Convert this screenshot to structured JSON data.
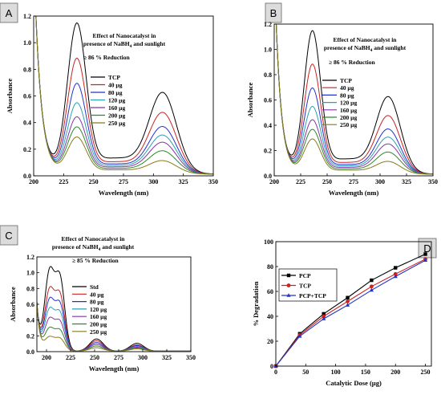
{
  "chart_data": [
    {
      "id": "A",
      "type": "line",
      "badge": "A",
      "title_lines": [
        "Effect of Nanocatalyst in",
        "presence of NaBH",
        "and sunlight"
      ],
      "title_sub": "4",
      "annotation": "≥ 86 % Reduction",
      "xlabel": "Wavelength (nm)",
      "ylabel": "Absorbance",
      "xlim": [
        200,
        350
      ],
      "ylim": [
        0,
        1.2
      ],
      "xticks": [
        200,
        225,
        250,
        275,
        300,
        325,
        350
      ],
      "yticks": [
        0.0,
        0.2,
        0.4,
        0.6,
        0.8,
        1.0,
        1.2
      ],
      "model": "tcp",
      "series": [
        {
          "name": "TCP",
          "color": "#000000",
          "peak1": 1.07,
          "peak2": 0.57,
          "trough": 0.22
        },
        {
          "name": "40 µg",
          "color": "#cc2222",
          "peak1": 0.82,
          "peak2": 0.43,
          "trough": 0.17
        },
        {
          "name": "80 µg",
          "color": "#2233cc",
          "peak1": 0.64,
          "peak2": 0.33,
          "trough": 0.14
        },
        {
          "name": "120 µg",
          "color": "#2aa0b0",
          "peak1": 0.5,
          "peak2": 0.27,
          "trough": 0.12
        },
        {
          "name": "160 µg",
          "color": "#8833aa",
          "peak1": 0.4,
          "peak2": 0.22,
          "trough": 0.1
        },
        {
          "name": "200 µg",
          "color": "#2a8a2a",
          "peak1": 0.33,
          "peak2": 0.16,
          "trough": 0.08
        },
        {
          "name": "250 µg",
          "color": "#8a7a1a",
          "peak1": 0.26,
          "peak2": 0.09,
          "trough": 0.06
        }
      ]
    },
    {
      "id": "B",
      "type": "line",
      "badge": "B",
      "title_lines": [
        "Effect of Nanocatalyst in",
        "presence of NaBH",
        "and sunlight"
      ],
      "title_sub": "4",
      "annotation": "≥ 86 % Reduction",
      "xlabel": "Wavelength (nm)",
      "ylabel": "Absorbance",
      "xlim": [
        200,
        350
      ],
      "ylim": [
        0,
        1.2
      ],
      "xticks": [
        200,
        225,
        250,
        275,
        300,
        325,
        350
      ],
      "yticks": [
        0.0,
        0.2,
        0.4,
        0.6,
        0.8,
        1.0,
        1.2
      ],
      "model": "tcp",
      "series": [
        {
          "name": "TCP",
          "color": "#000000",
          "peak1": 1.07,
          "peak2": 0.57,
          "trough": 0.22
        },
        {
          "name": "40 µg",
          "color": "#cc2222",
          "peak1": 0.82,
          "peak2": 0.43,
          "trough": 0.17
        },
        {
          "name": "80 µg",
          "color": "#2233cc",
          "peak1": 0.64,
          "peak2": 0.33,
          "trough": 0.14
        },
        {
          "name": "120 µg",
          "color": "#2aa0b0",
          "peak1": 0.5,
          "peak2": 0.27,
          "trough": 0.12
        },
        {
          "name": "160 µg",
          "color": "#8833aa",
          "peak1": 0.4,
          "peak2": 0.22,
          "trough": 0.1
        },
        {
          "name": "200 µg",
          "color": "#2a8a2a",
          "peak1": 0.33,
          "peak2": 0.16,
          "trough": 0.08
        },
        {
          "name": "250 µg",
          "color": "#8a7a1a",
          "peak1": 0.26,
          "peak2": 0.09,
          "trough": 0.06
        }
      ]
    },
    {
      "id": "C",
      "type": "line",
      "badge": "C",
      "title_lines": [
        "Effect of Nanocatalyst in",
        "presence of NaBH",
        "and sunlight"
      ],
      "title_sub": "4",
      "annotation": "≥ 85 % Reduction",
      "xlabel": "Wavelength (nm)",
      "ylabel": "Absorbance",
      "xlim": [
        190,
        350
      ],
      "ylim": [
        0,
        1.2
      ],
      "xticks": [
        200,
        225,
        250,
        275,
        300,
        325,
        350
      ],
      "yticks": [
        0.0,
        0.2,
        0.4,
        0.6,
        0.8,
        1.0,
        1.2
      ],
      "model": "std",
      "series": [
        {
          "name": "Std",
          "color": "#000000",
          "peak1": 1.1,
          "peak2": 0.1,
          "trough": 0.07
        },
        {
          "name": "40 µg",
          "color": "#cc2222",
          "peak1": 0.84,
          "peak2": 0.08,
          "trough": 0.06
        },
        {
          "name": "80 µg",
          "color": "#2233cc",
          "peak1": 0.7,
          "peak2": 0.07,
          "trough": 0.05
        },
        {
          "name": "120 µg",
          "color": "#2aa0b0",
          "peak1": 0.57,
          "peak2": 0.06,
          "trough": 0.04
        },
        {
          "name": "160 µg",
          "color": "#8833aa",
          "peak1": 0.44,
          "peak2": 0.05,
          "trough": 0.04
        },
        {
          "name": "200 µg",
          "color": "#2a8a2a",
          "peak1": 0.31,
          "peak2": 0.04,
          "trough": 0.03
        },
        {
          "name": "250 µg",
          "color": "#8a7a1a",
          "peak1": 0.19,
          "peak2": 0.03,
          "trough": 0.02
        }
      ]
    },
    {
      "id": "D",
      "type": "line",
      "badge": "D",
      "xlabel": "Catalytic Dose (µg)",
      "ylabel": "% Degradation",
      "xlim": [
        0,
        260
      ],
      "ylim": [
        0,
        100
      ],
      "xticks": [
        0,
        50,
        100,
        150,
        200,
        250
      ],
      "yticks": [
        0,
        20,
        40,
        60,
        80,
        100
      ],
      "x": [
        0,
        40,
        80,
        120,
        160,
        200,
        250
      ],
      "series": [
        {
          "name": "PCP",
          "color": "#000000",
          "marker": "square",
          "values": [
            0,
            26,
            42,
            55,
            69,
            79,
            90
          ]
        },
        {
          "name": "TCP",
          "color": "#cc2222",
          "marker": "circle",
          "values": [
            0,
            25,
            40,
            52,
            64,
            74,
            86
          ]
        },
        {
          "name": "PCP+TCP",
          "color": "#2233cc",
          "marker": "triangle",
          "values": [
            0,
            24,
            38,
            49,
            61,
            72,
            85
          ]
        }
      ]
    }
  ]
}
